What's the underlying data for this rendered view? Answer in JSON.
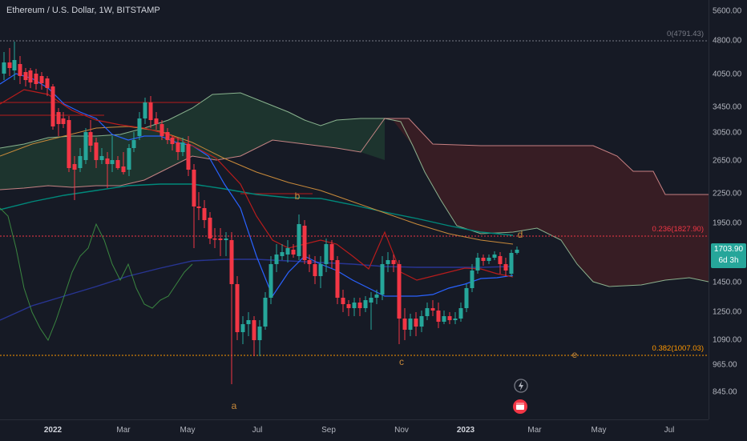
{
  "header": {
    "symbol_title": "Ethereum / U.S. Dollar, 1W, BITSTAMP"
  },
  "price_axis": {
    "labels": [
      "5600.00",
      "4800.00",
      "4050.00",
      "3450.00",
      "3050.00",
      "2650.00",
      "2250.00",
      "1950.00",
      "1450.00",
      "1250.00",
      "1090.00",
      "965.00",
      "845.00"
    ],
    "current_price": "1703.90",
    "countdown": "6d 3h"
  },
  "time_axis": {
    "labels": [
      "2022",
      "Mar",
      "May",
      "Jul",
      "Sep",
      "Nov",
      "2023",
      "Mar",
      "May",
      "Jul"
    ]
  },
  "fib_levels": [
    {
      "label": "0(4791.43)",
      "color": "#787b86"
    },
    {
      "label": "0.236(1827.90)",
      "color": "#f23645"
    },
    {
      "label": "0.382(1007.03)",
      "color": "#ff9800"
    }
  ],
  "wave_labels": [
    "a",
    "b",
    "c",
    "d",
    "e"
  ],
  "events": {
    "lightning_icon": "lightning-icon",
    "earnings_icon": "calendar-event-icon"
  },
  "colors": {
    "up": "#26a69a",
    "down": "#f23645",
    "cloud_bull": "#1f3a30",
    "cloud_bear": "#3d1f24",
    "conversion": "#2962ff",
    "base": "#b71c1c",
    "lagging": "#43a047",
    "ma_long": "#00897b",
    "ma_mid": "#1a237e",
    "wave": "#c98a3a"
  }
}
